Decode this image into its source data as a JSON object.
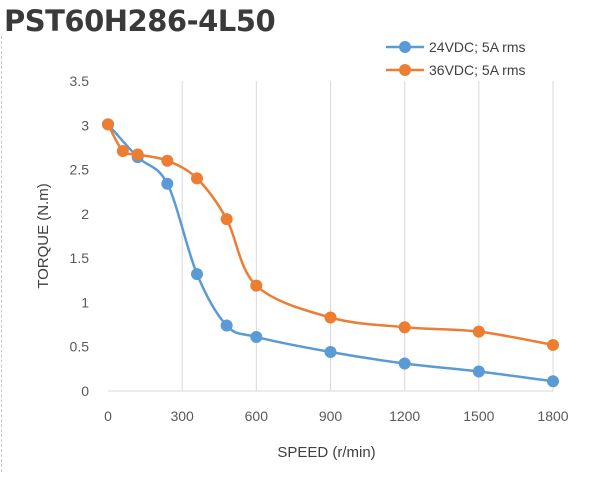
{
  "title": "PST60H286-4L50",
  "chart_data": {
    "type": "line",
    "xlabel": "SPEED (r/min)",
    "ylabel": "TORQUE (N.m)",
    "xlim": [
      0,
      1800
    ],
    "ylim": [
      0,
      3.5
    ],
    "x_ticks": [
      "0",
      "300",
      "600",
      "900",
      "1200",
      "1500",
      "1800"
    ],
    "y_ticks": [
      "0",
      "0.5",
      "1",
      "1.5",
      "2",
      "2.5",
      "3",
      "3.5"
    ],
    "grid": "vertical",
    "legend_position": "top-right",
    "series": [
      {
        "name": "24VDC; 5A rms",
        "color": "#5b9bd5",
        "x": [
          0,
          120,
          240,
          360,
          480,
          600,
          900,
          1200,
          1500,
          1800
        ],
        "y": [
          3.01,
          2.64,
          2.34,
          1.32,
          0.74,
          0.61,
          0.44,
          0.31,
          0.22,
          0.11
        ]
      },
      {
        "name": "36VDC; 5A rms",
        "color": "#ed7d31",
        "x": [
          0,
          60,
          120,
          240,
          360,
          480,
          600,
          900,
          1200,
          1500,
          1800
        ],
        "y": [
          3.01,
          2.71,
          2.67,
          2.6,
          2.4,
          1.94,
          1.19,
          0.83,
          0.72,
          0.67,
          0.52
        ]
      }
    ]
  }
}
